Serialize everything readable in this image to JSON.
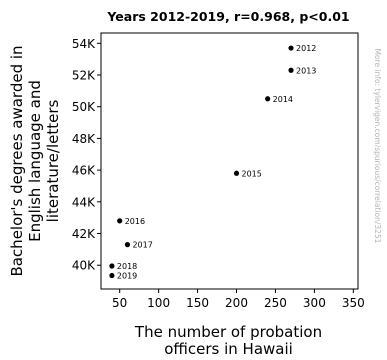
{
  "chart_data": {
    "type": "scatter",
    "title": "Years 2012-2019, r=0.968, p<0.01",
    "xlabel": [
      "The number of probation",
      "officers in Hawaii"
    ],
    "ylabel": [
      "Bachelor's degrees awarded in",
      "English language and",
      "literature/letters"
    ],
    "xlim": [
      26,
      356
    ],
    "ylim": [
      38500,
      54650
    ],
    "xticks": [
      50,
      100,
      150,
      200,
      250,
      300,
      350
    ],
    "yticks": [
      40000,
      42000,
      44000,
      46000,
      48000,
      50000,
      52000,
      54000
    ],
    "ytick_labels": [
      "40K",
      "42K",
      "44K",
      "46K",
      "48K",
      "50K",
      "52K",
      "54K"
    ],
    "point_color": "#000000",
    "points": [
      {
        "label": "2012",
        "x": 270,
        "y": 53700
      },
      {
        "label": "2013",
        "x": 270,
        "y": 52300
      },
      {
        "label": "2014",
        "x": 240,
        "y": 50500
      },
      {
        "label": "2015",
        "x": 200,
        "y": 45800
      },
      {
        "label": "2016",
        "x": 50,
        "y": 42800
      },
      {
        "label": "2017",
        "x": 60,
        "y": 41300
      },
      {
        "label": "2018",
        "x": 40,
        "y": 39950
      },
      {
        "label": "2019",
        "x": 40,
        "y": 39350
      }
    ],
    "grid": false,
    "watermark": "More info: tylervigen.com/spurious/correlation/3251"
  }
}
